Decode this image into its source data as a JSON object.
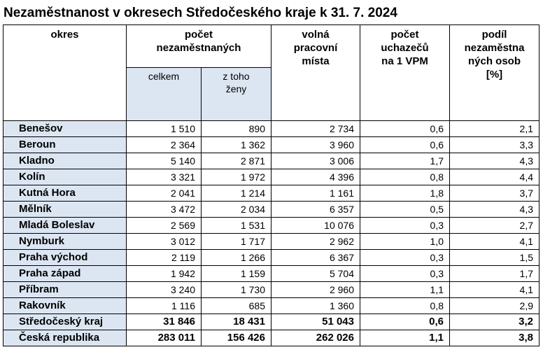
{
  "title": "Nezaměstnanost v okresech Středočeského kraje k 31. 7. 2024",
  "headers": {
    "okres": "okres",
    "pocet": "počet\nnezaměstnaných",
    "celkem": "celkem",
    "zeny": "z toho\nženy",
    "volna": "volná\npracovní\nmísta",
    "uchazecu": "počet\nuchazečů\nna 1 VPM",
    "podil": "podíl\nnezaměstna\nných osob\n[%]"
  },
  "rows": [
    {
      "okres": "Benešov",
      "celkem": "1 510",
      "zeny": "890",
      "volna": "2 734",
      "uchazecu": "0,6",
      "podil": "2,1"
    },
    {
      "okres": "Beroun",
      "celkem": "2 364",
      "zeny": "1 362",
      "volna": "3 960",
      "uchazecu": "0,6",
      "podil": "3,3"
    },
    {
      "okres": "Kladno",
      "celkem": "5 140",
      "zeny": "2 871",
      "volna": "3 006",
      "uchazecu": "1,7",
      "podil": "4,3"
    },
    {
      "okres": "Kolín",
      "celkem": "3 321",
      "zeny": "1 972",
      "volna": "4 396",
      "uchazecu": "0,8",
      "podil": "4,4"
    },
    {
      "okres": "Kutná Hora",
      "celkem": "2 041",
      "zeny": "1 214",
      "volna": "1 161",
      "uchazecu": "1,8",
      "podil": "3,7"
    },
    {
      "okres": "Mělník",
      "celkem": "3 472",
      "zeny": "2 034",
      "volna": "6 357",
      "uchazecu": "0,5",
      "podil": "4,3"
    },
    {
      "okres": "Mladá Boleslav",
      "celkem": "2 569",
      "zeny": "1 531",
      "volna": "10 076",
      "uchazecu": "0,3",
      "podil": "2,7"
    },
    {
      "okres": "Nymburk",
      "celkem": "3 012",
      "zeny": "1 717",
      "volna": "2 962",
      "uchazecu": "1,0",
      "podil": "4,1"
    },
    {
      "okres": "Praha východ",
      "celkem": "2 119",
      "zeny": "1 266",
      "volna": "6 367",
      "uchazecu": "0,3",
      "podil": "1,5"
    },
    {
      "okres": "Praha západ",
      "celkem": "1 942",
      "zeny": "1 159",
      "volna": "5 704",
      "uchazecu": "0,3",
      "podil": "1,7"
    },
    {
      "okres": "Příbram",
      "celkem": "3 240",
      "zeny": "1 730",
      "volna": "2 960",
      "uchazecu": "1,1",
      "podil": "4,1"
    },
    {
      "okres": "Rakovník",
      "celkem": "1 116",
      "zeny": "685",
      "volna": "1 360",
      "uchazecu": "0,8",
      "podil": "2,9"
    },
    {
      "okres": "Středočeský kraj",
      "celkem": "31 846",
      "zeny": "18 431",
      "volna": "51 043",
      "uchazecu": "0,6",
      "podil": "3,2",
      "total": true
    },
    {
      "okres": "Česká republika",
      "celkem": "283 011",
      "zeny": "156 426",
      "volna": "262 026",
      "uchazecu": "1,1",
      "podil": "3,8",
      "total": true
    }
  ],
  "colors": {
    "header_fill": "#dce6f2",
    "border": "#000000"
  }
}
